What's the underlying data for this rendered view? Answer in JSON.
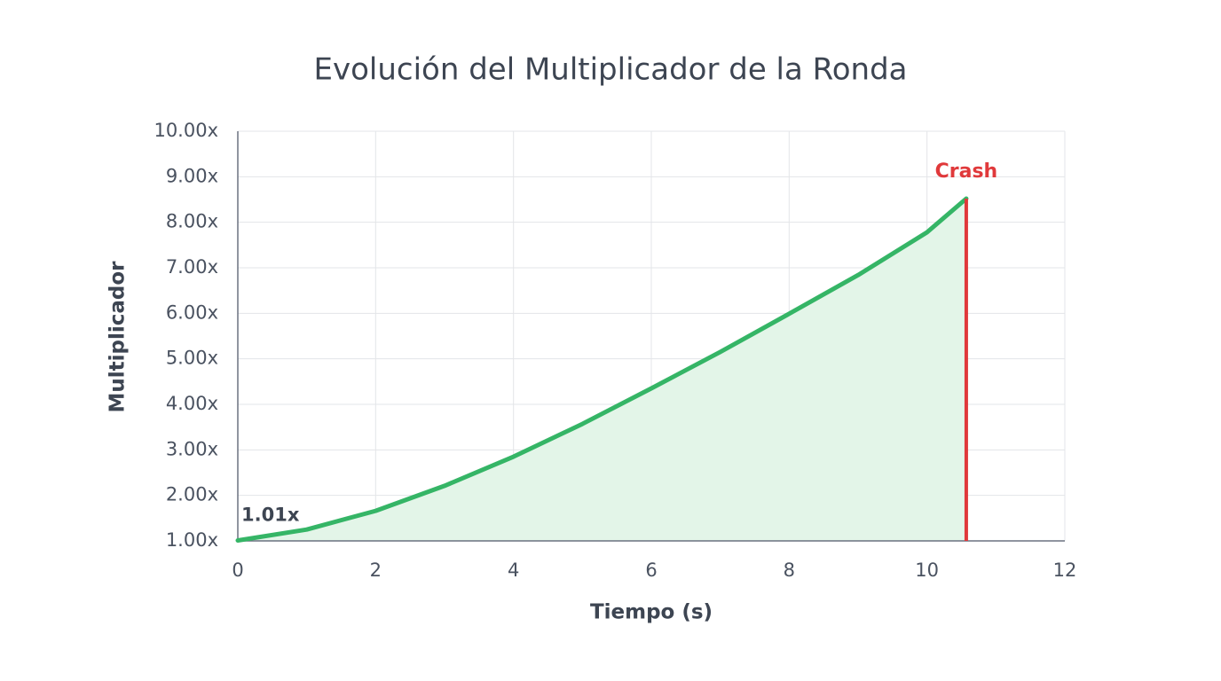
{
  "chart_data": {
    "type": "line",
    "title": "Evolución del Multiplicador de la Ronda",
    "xlabel": "Tiempo (s)",
    "ylabel": "Multiplicador",
    "x": [
      0,
      1,
      2,
      3,
      4,
      5,
      6,
      7,
      8,
      9,
      10,
      10.57
    ],
    "values": [
      1.01,
      1.25,
      1.66,
      2.21,
      2.85,
      3.57,
      4.35,
      5.15,
      5.99,
      6.84,
      7.78,
      8.52
    ],
    "value_labels": [
      "1.01x",
      null,
      null,
      null,
      null,
      null,
      null,
      null,
      null,
      null,
      null,
      null
    ],
    "color": "#35b566",
    "fill_color": "#e3f5e8",
    "crash_label": "Crash",
    "crash_color": "#e0393b",
    "xlim": [
      0,
      12
    ],
    "xticks": [
      0,
      2,
      4,
      6,
      8,
      10,
      12
    ],
    "ylim": [
      1,
      10
    ],
    "yticks": [
      {
        "value": 1,
        "label": "1.00x"
      },
      {
        "value": 2,
        "label": "2.00x"
      },
      {
        "value": 3,
        "label": "3.00x"
      },
      {
        "value": 4,
        "label": "4.00x"
      },
      {
        "value": 5,
        "label": "5.00x"
      },
      {
        "value": 6,
        "label": "6.00x"
      },
      {
        "value": 7,
        "label": "7.00x"
      },
      {
        "value": 8,
        "label": "8.00x"
      },
      {
        "value": 9,
        "label": "9.00x"
      },
      {
        "value": 10,
        "label": "10.00x"
      }
    ],
    "grid": true
  }
}
